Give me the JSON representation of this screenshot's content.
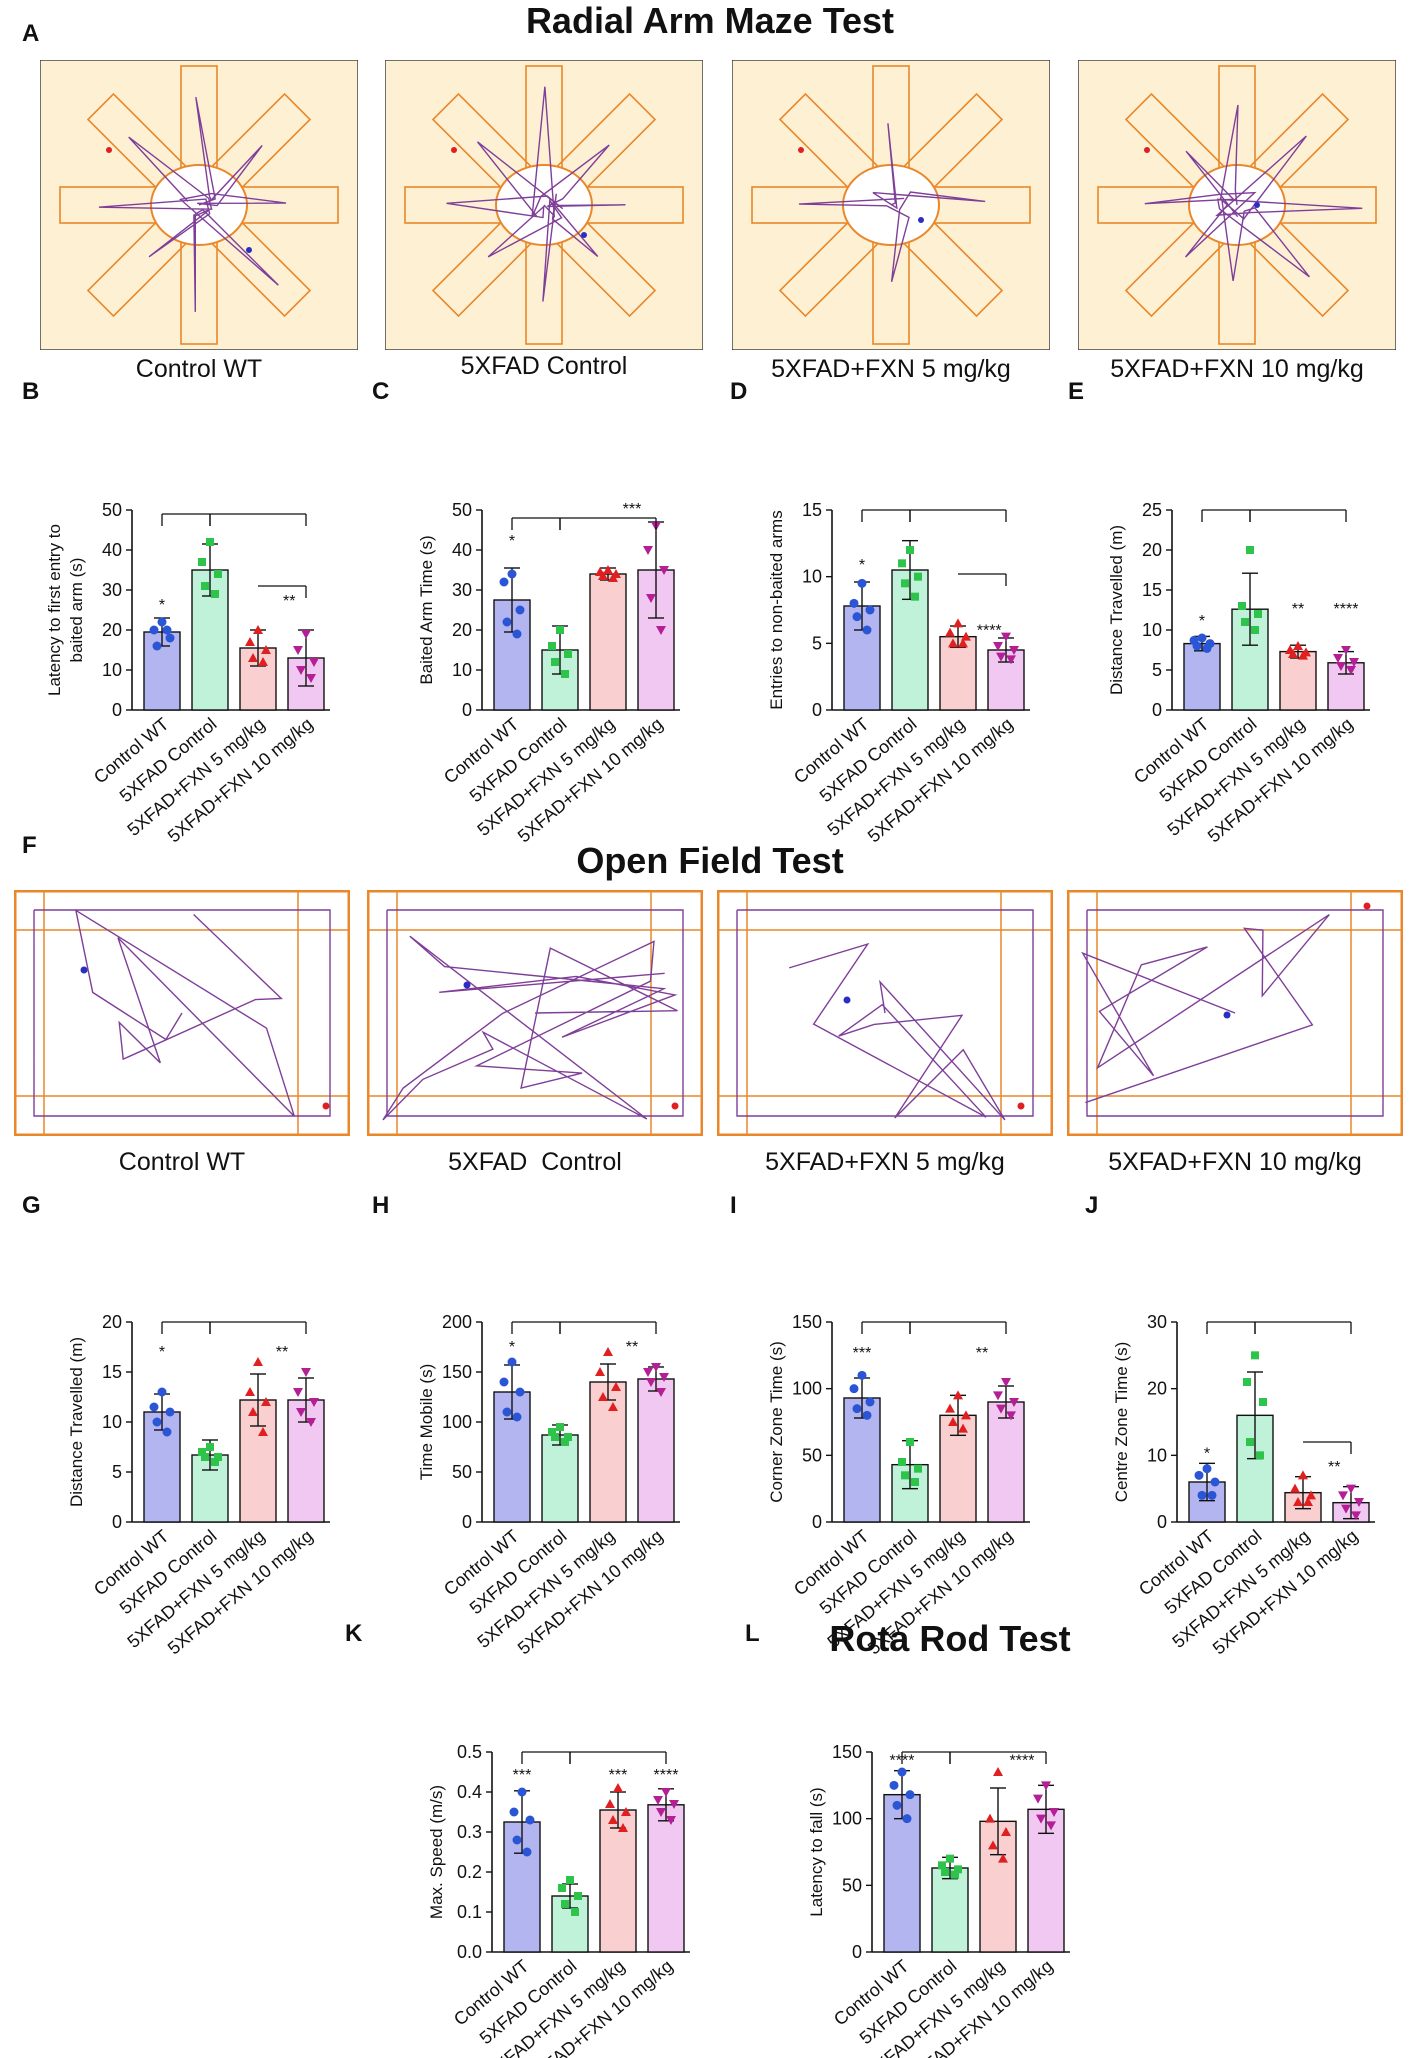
{
  "groups": [
    "Control WT",
    "5XFAD Control",
    "5XFAD+FXN 5 mg/kg",
    "5XFAD+FXN 10 mg/kg"
  ],
  "colors": {
    "fills": [
      "#b3b5f0",
      "#bff2d8",
      "#f9cfcf",
      "#f1c8f1"
    ],
    "points": [
      "#2a55d5",
      "#2ec34b",
      "#e02020",
      "#b41f96"
    ],
    "track": "#7f3f98",
    "arena": "#e9872a",
    "maze_bg": "#fdf0d3",
    "start_dot": "#e02020",
    "end_dot": "#2b2ec2"
  },
  "sections": {
    "radial_title": "Radial Arm Maze Test",
    "open_field_title": "Open Field Test",
    "rota_title": "Rota Rod Test"
  },
  "panel_letters": {
    "A": "A",
    "B": "B",
    "C": "C",
    "D": "D",
    "E": "E",
    "F": "F",
    "G": "G",
    "H": "H",
    "I": "I",
    "J": "J",
    "K": "K",
    "L": "L"
  },
  "radial_labels": [
    "Control WT",
    "5XFAD Control",
    "5XFAD+FXN 5 mg/kg",
    "5XFAD+FXN 10 mg/kg"
  ],
  "open_field_labels": [
    "Control WT",
    "5XFAD  Control",
    "5XFAD+FXN 5 mg/kg",
    "5XFAD+FXN 10 mg/kg"
  ],
  "chart_data": [
    {
      "id": "B",
      "type": "bar",
      "ylabel": "Latency to first entry to baited arm (s)",
      "ylabel_lines": [
        "Latency to first entry to",
        "baited arm (s)"
      ],
      "ylim": [
        0,
        50
      ],
      "yticks": [
        0,
        10,
        20,
        30,
        40,
        50
      ],
      "values": [
        19.5,
        35,
        15.5,
        13
      ],
      "errors": [
        3.5,
        6.5,
        4.5,
        7
      ],
      "points": [
        [
          22,
          20,
          18,
          16,
          20
        ],
        [
          42,
          37,
          34,
          31,
          29
        ],
        [
          20,
          17,
          15,
          13,
          12
        ],
        [
          19,
          15,
          12,
          10,
          8
        ]
      ],
      "brackets": [
        {
          "from": 0,
          "to": 1,
          "top": 49
        },
        {
          "from": 1,
          "to": 3,
          "top": 49
        },
        {
          "from": 2,
          "to": 3,
          "top": 31
        }
      ],
      "stars": [
        {
          "group": 0,
          "text": "*",
          "value": 25
        },
        {
          "group": 2.65,
          "text": "**",
          "value": 26
        }
      ]
    },
    {
      "id": "C",
      "type": "bar",
      "ylabel": "Baited Arm Time (s)",
      "ylabel_lines": [
        "Baited Arm Time (s)"
      ],
      "ylim": [
        0,
        50
      ],
      "yticks": [
        0,
        10,
        20,
        30,
        40,
        50
      ],
      "values": [
        27.5,
        15,
        34,
        35
      ],
      "errors": [
        8,
        6,
        1.5,
        12
      ],
      "points": [
        [
          34,
          32,
          25,
          22,
          19
        ],
        [
          20,
          16,
          14,
          12,
          9
        ],
        [
          35,
          34.5,
          34,
          33.5,
          33
        ],
        [
          46,
          40,
          35,
          28,
          20
        ]
      ],
      "brackets": [
        {
          "from": 0,
          "to": 1,
          "top": 48
        },
        {
          "from": 1,
          "to": 3,
          "top": 48
        }
      ],
      "stars": [
        {
          "group": 0,
          "text": "*",
          "value": 41
        },
        {
          "group": 2.5,
          "text": "***",
          "value": 49
        }
      ]
    },
    {
      "id": "D",
      "type": "bar",
      "ylabel": "Entries to non-baited arms",
      "ylabel_lines": [
        "Entries to non-baited arms"
      ],
      "ylim": [
        0,
        15
      ],
      "yticks": [
        0,
        5,
        10,
        15
      ],
      "values": [
        7.8,
        10.5,
        5.5,
        4.5
      ],
      "errors": [
        1.8,
        2.2,
        0.8,
        0.9
      ],
      "points": [
        [
          9.5,
          8,
          7.5,
          7,
          6
        ],
        [
          12,
          11,
          10,
          9.5,
          8.5
        ],
        [
          6.5,
          5.8,
          5.5,
          5,
          5
        ],
        [
          5.5,
          4.8,
          4.5,
          4,
          3.8
        ]
      ],
      "brackets": [
        {
          "from": 0,
          "to": 1,
          "top": 15
        },
        {
          "from": 1,
          "to": 3,
          "top": 15
        },
        {
          "from": 2,
          "to": 3,
          "top": 10.2
        }
      ],
      "stars": [
        {
          "group": 0,
          "text": "*",
          "value": 10.5
        },
        {
          "group": 2.65,
          "text": "****",
          "value": 5.6
        }
      ]
    },
    {
      "id": "E",
      "type": "bar",
      "ylabel": "Distance Travelled (m)",
      "ylabel_lines": [
        "Distance Travelled (m)"
      ],
      "ylim": [
        0,
        25
      ],
      "yticks": [
        0,
        5,
        10,
        15,
        20,
        25
      ],
      "values": [
        8.3,
        12.6,
        7.3,
        5.9
      ],
      "errors": [
        0.9,
        4.5,
        0.8,
        1.4
      ],
      "points": [
        [
          9,
          8.7,
          8.3,
          8,
          7.7
        ],
        [
          20,
          13,
          12,
          11,
          10
        ],
        [
          8,
          7.5,
          7.2,
          7,
          6.8
        ],
        [
          7.5,
          6.5,
          6,
          5.5,
          5
        ]
      ],
      "brackets": [
        {
          "from": 0,
          "to": 1,
          "top": 25
        },
        {
          "from": 1,
          "to": 3,
          "top": 25
        }
      ],
      "stars": [
        {
          "group": 0,
          "text": "*",
          "value": 10.5
        },
        {
          "group": 2,
          "text": "**",
          "value": 12
        },
        {
          "group": 3,
          "text": "****",
          "value": 12
        }
      ]
    },
    {
      "id": "G",
      "type": "bar",
      "ylabel": "Distance Travelled (m)",
      "ylabel_lines": [
        "Distance Travelled (m)"
      ],
      "ylim": [
        0,
        20
      ],
      "yticks": [
        0,
        5,
        10,
        15,
        20
      ],
      "values": [
        11,
        6.7,
        12.2,
        12.2
      ],
      "errors": [
        1.8,
        1.5,
        2.6,
        2.2
      ],
      "points": [
        [
          13,
          11.5,
          11,
          10,
          9
        ],
        [
          7.5,
          7,
          6.5,
          6.5,
          6
        ],
        [
          16,
          13,
          12,
          11,
          9
        ],
        [
          15,
          13,
          12,
          11,
          10
        ]
      ],
      "brackets": [
        {
          "from": 0,
          "to": 1,
          "top": 20
        },
        {
          "from": 1,
          "to": 3,
          "top": 20
        }
      ],
      "stars": [
        {
          "group": 0,
          "text": "*",
          "value": 16.5
        },
        {
          "group": 2.5,
          "text": "**",
          "value": 16.5
        }
      ]
    },
    {
      "id": "H",
      "type": "bar",
      "ylabel": "Time Mobile (s)",
      "ylabel_lines": [
        "Time Mobile (s)"
      ],
      "ylim": [
        0,
        200
      ],
      "yticks": [
        0,
        50,
        100,
        150,
        200
      ],
      "values": [
        130,
        87,
        140,
        143
      ],
      "errors": [
        27,
        10,
        18,
        12
      ],
      "points": [
        [
          160,
          140,
          130,
          110,
          105
        ],
        [
          95,
          90,
          85,
          85,
          80
        ],
        [
          170,
          150,
          135,
          125,
          115
        ],
        [
          155,
          150,
          145,
          140,
          130
        ]
      ],
      "brackets": [
        {
          "from": 0,
          "to": 1,
          "top": 200
        },
        {
          "from": 1,
          "to": 3,
          "top": 200
        }
      ],
      "stars": [
        {
          "group": 0,
          "text": "*",
          "value": 170
        },
        {
          "group": 2.5,
          "text": "**",
          "value": 170
        }
      ]
    },
    {
      "id": "I",
      "type": "bar",
      "ylabel": "Corner Zone Time (s)",
      "ylabel_lines": [
        "Corner Zone Time (s)"
      ],
      "ylim": [
        0,
        150
      ],
      "yticks": [
        0,
        50,
        100,
        150
      ],
      "values": [
        93,
        43,
        80,
        90
      ],
      "errors": [
        15,
        18,
        15,
        12
      ],
      "points": [
        [
          110,
          100,
          90,
          85,
          80
        ],
        [
          60,
          45,
          40,
          35,
          30
        ],
        [
          95,
          85,
          80,
          75,
          70
        ],
        [
          105,
          95,
          90,
          85,
          80
        ]
      ],
      "brackets": [
        {
          "from": 0,
          "to": 1,
          "top": 150
        },
        {
          "from": 1,
          "to": 3,
          "top": 150
        }
      ],
      "stars": [
        {
          "group": 0,
          "text": "***",
          "value": 123
        },
        {
          "group": 2.5,
          "text": "**",
          "value": 123
        }
      ]
    },
    {
      "id": "J",
      "type": "bar",
      "ylabel": "Centre Zone Time (s)",
      "ylabel_lines": [
        "Centre Zone Time (s)"
      ],
      "ylim": [
        0,
        30
      ],
      "yticks": [
        0,
        10,
        20,
        30
      ],
      "values": [
        6,
        16,
        4.4,
        2.9
      ],
      "errors": [
        2.8,
        6.5,
        2.4,
        2.4
      ],
      "points": [
        [
          8,
          7,
          6,
          4,
          4
        ],
        [
          25,
          21,
          18,
          12,
          10
        ],
        [
          7,
          5,
          4,
          3,
          3
        ],
        [
          5,
          4,
          3,
          2,
          1
        ]
      ],
      "brackets": [
        {
          "from": 0,
          "to": 1,
          "top": 30
        },
        {
          "from": 1,
          "to": 3,
          "top": 30
        },
        {
          "from": 2,
          "to": 3,
          "top": 12
        }
      ],
      "stars": [
        {
          "group": 0,
          "text": "*",
          "value": 9.5
        },
        {
          "group": 2.65,
          "text": "**",
          "value": 7.5
        }
      ]
    },
    {
      "id": "K",
      "type": "bar",
      "ylabel": "Max. Speed (m/s)",
      "ylabel_lines": [
        "Max. Speed (m/s)"
      ],
      "ylim": [
        0,
        0.5
      ],
      "yticks": [
        0.0,
        0.1,
        0.2,
        0.3,
        0.4,
        0.5
      ],
      "yticklabels": [
        "0.0",
        "0.1",
        "0.2",
        "0.3",
        "0.4",
        "0.5"
      ],
      "values": [
        0.325,
        0.14,
        0.355,
        0.368
      ],
      "errors": [
        0.078,
        0.03,
        0.045,
        0.04
      ],
      "points": [
        [
          0.4,
          0.35,
          0.33,
          0.28,
          0.25
        ],
        [
          0.18,
          0.16,
          0.14,
          0.12,
          0.1
        ],
        [
          0.41,
          0.37,
          0.35,
          0.33,
          0.31
        ],
        [
          0.4,
          0.38,
          0.37,
          0.35,
          0.33
        ]
      ],
      "brackets": [
        {
          "from": 0,
          "to": 1,
          "top": 0.5
        },
        {
          "from": 1,
          "to": 3,
          "top": 0.5
        }
      ],
      "stars": [
        {
          "group": 0,
          "text": "***",
          "value": 0.43
        },
        {
          "group": 2,
          "text": "***",
          "value": 0.43
        },
        {
          "group": 3,
          "text": "****",
          "value": 0.43
        }
      ]
    },
    {
      "id": "L",
      "type": "bar",
      "ylabel": "Latency to fall (s)",
      "ylabel_lines": [
        "Latency to fall (s)"
      ],
      "ylim": [
        0,
        150
      ],
      "yticks": [
        0,
        50,
        100,
        150
      ],
      "values": [
        118,
        63,
        98,
        107
      ],
      "errors": [
        18,
        8,
        25,
        18
      ],
      "points": [
        [
          135,
          125,
          118,
          110,
          100
        ],
        [
          70,
          65,
          62,
          60,
          58
        ],
        [
          135,
          100,
          90,
          80,
          70
        ],
        [
          125,
          115,
          105,
          100,
          95
        ]
      ],
      "brackets": [
        {
          "from": 0,
          "to": 1,
          "top": 150
        },
        {
          "from": 1,
          "to": 3,
          "top": 150
        }
      ],
      "stars": [
        {
          "group": 0,
          "text": "****",
          "value": 140
        },
        {
          "group": 2.5,
          "text": "****",
          "value": 140
        }
      ]
    }
  ]
}
